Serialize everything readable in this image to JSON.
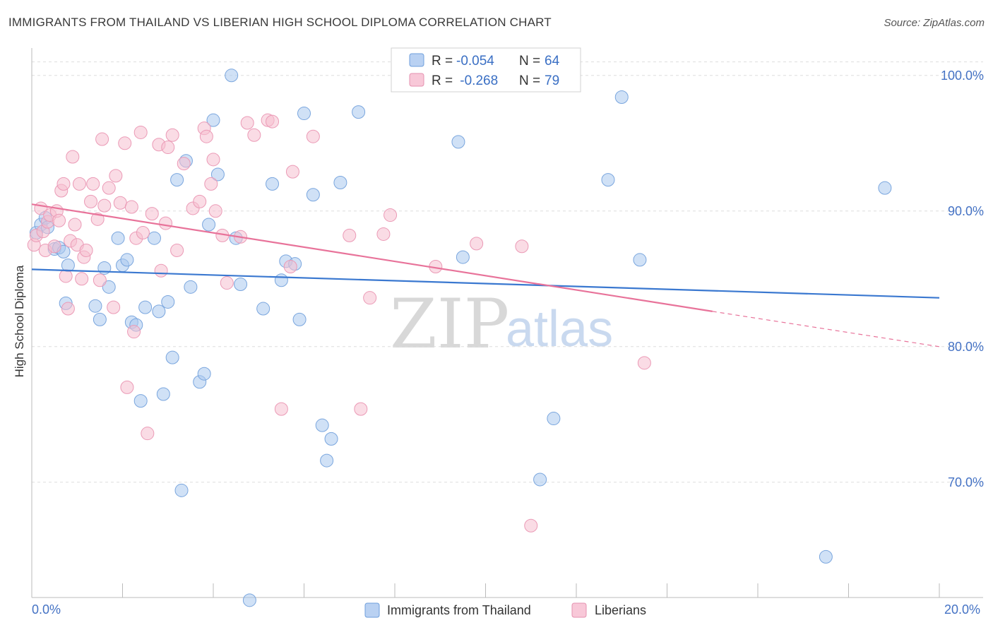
{
  "title": "IMMIGRANTS FROM THAILAND VS LIBERIAN HIGH SCHOOL DIPLOMA CORRELATION CHART",
  "source": "Source: ZipAtlas.com",
  "watermark": {
    "zip": "ZIP",
    "atlas": "atlas"
  },
  "colors": {
    "blue": "#3a78d0",
    "pink": "#e8739a",
    "blue_fill": "#aac8ee",
    "pink_fill": "#f5bfd0",
    "grid": "#dddddd"
  },
  "legend": {
    "rows": [
      {
        "r_label": "R = ",
        "r_value": "-0.054",
        "n_label": "N = ",
        "n_value": "64"
      },
      {
        "r_label": "R = ",
        "r_value": " -0.268",
        "n_label": "N = ",
        "n_value": "79"
      }
    ]
  },
  "chart_data": {
    "type": "scatter",
    "title": "IMMIGRANTS FROM THAILAND VS LIBERIAN HIGH SCHOOL DIPLOMA CORRELATION CHART",
    "xlabel": "",
    "ylabel": "High School Diploma",
    "xlim": [
      0,
      20
    ],
    "ylim": [
      61.5,
      101.5
    ],
    "x_tick_labels": [
      "0.0%",
      "20.0%"
    ],
    "y_ticks": [
      70,
      80,
      90,
      100
    ],
    "y_tick_labels": [
      "70.0%",
      "80.0%",
      "90.0%",
      "100.0%"
    ],
    "grid": true,
    "series": [
      {
        "name": "Immigrants from Thailand",
        "color": "#3a78d0",
        "R": -0.054,
        "N": 64,
        "trend": {
          "x": [
            0,
            20
          ],
          "y": [
            85.7,
            83.6
          ]
        },
        "points": [
          [
            0.1,
            88.4
          ],
          [
            0.2,
            89.0
          ],
          [
            0.3,
            89.5
          ],
          [
            0.35,
            88.8
          ],
          [
            0.5,
            87.2
          ],
          [
            0.6,
            87.3
          ],
          [
            0.7,
            87.0
          ],
          [
            0.8,
            86.0
          ],
          [
            0.75,
            83.2
          ],
          [
            1.4,
            83.0
          ],
          [
            1.5,
            82.0
          ],
          [
            1.6,
            85.8
          ],
          [
            1.7,
            84.4
          ],
          [
            1.9,
            88.0
          ],
          [
            2.0,
            86.0
          ],
          [
            2.1,
            86.4
          ],
          [
            2.2,
            81.8
          ],
          [
            2.3,
            81.6
          ],
          [
            2.4,
            76.0
          ],
          [
            2.5,
            82.9
          ],
          [
            2.7,
            88.0
          ],
          [
            2.8,
            82.6
          ],
          [
            2.9,
            76.5
          ],
          [
            3.0,
            83.3
          ],
          [
            3.1,
            79.2
          ],
          [
            3.2,
            92.3
          ],
          [
            3.3,
            69.4
          ],
          [
            3.4,
            93.7
          ],
          [
            3.5,
            84.4
          ],
          [
            3.7,
            77.4
          ],
          [
            3.8,
            78.0
          ],
          [
            3.9,
            89.0
          ],
          [
            4.0,
            96.7
          ],
          [
            4.1,
            92.7
          ],
          [
            4.4,
            100.0
          ],
          [
            4.5,
            88.0
          ],
          [
            4.6,
            84.6
          ],
          [
            4.8,
            61.3
          ],
          [
            5.1,
            82.8
          ],
          [
            5.3,
            92.0
          ],
          [
            5.5,
            84.9
          ],
          [
            5.6,
            86.3
          ],
          [
            5.8,
            86.1
          ],
          [
            5.9,
            82.0
          ],
          [
            6.0,
            97.2
          ],
          [
            6.2,
            91.2
          ],
          [
            6.4,
            74.2
          ],
          [
            6.5,
            71.6
          ],
          [
            6.6,
            73.2
          ],
          [
            6.8,
            92.1
          ],
          [
            7.2,
            97.3
          ],
          [
            9.4,
            95.1
          ],
          [
            9.5,
            86.6
          ],
          [
            11.2,
            70.2
          ],
          [
            11.5,
            74.7
          ],
          [
            12.7,
            92.3
          ],
          [
            13.0,
            98.4
          ],
          [
            13.4,
            86.4
          ],
          [
            17.5,
            64.5
          ],
          [
            18.8,
            91.7
          ]
        ]
      },
      {
        "name": "Liberians",
        "color": "#e8739a",
        "R": -0.268,
        "N": 79,
        "trend": {
          "x": [
            0,
            15
          ],
          "y": [
            90.5,
            82.6
          ]
        },
        "trend_dashed": {
          "x": [
            15,
            20
          ],
          "y": [
            82.6,
            80.0
          ]
        },
        "points": [
          [
            0.05,
            87.5
          ],
          [
            0.1,
            88.2
          ],
          [
            0.2,
            90.2
          ],
          [
            0.25,
            88.5
          ],
          [
            0.3,
            87.1
          ],
          [
            0.35,
            89.2
          ],
          [
            0.4,
            89.7
          ],
          [
            0.5,
            87.4
          ],
          [
            0.55,
            90.0
          ],
          [
            0.6,
            89.3
          ],
          [
            0.65,
            91.5
          ],
          [
            0.7,
            92.0
          ],
          [
            0.75,
            85.2
          ],
          [
            0.8,
            82.8
          ],
          [
            0.85,
            87.8
          ],
          [
            0.9,
            94.0
          ],
          [
            0.95,
            89.0
          ],
          [
            1.0,
            87.5
          ],
          [
            1.05,
            92.0
          ],
          [
            1.1,
            85.0
          ],
          [
            1.15,
            86.6
          ],
          [
            1.2,
            87.1
          ],
          [
            1.3,
            90.7
          ],
          [
            1.35,
            92.0
          ],
          [
            1.45,
            89.4
          ],
          [
            1.5,
            84.9
          ],
          [
            1.55,
            95.3
          ],
          [
            1.6,
            90.4
          ],
          [
            1.7,
            91.7
          ],
          [
            1.8,
            82.9
          ],
          [
            1.85,
            92.6
          ],
          [
            1.95,
            90.6
          ],
          [
            2.05,
            95.0
          ],
          [
            2.1,
            77.0
          ],
          [
            2.2,
            90.3
          ],
          [
            2.25,
            81.1
          ],
          [
            2.3,
            88.0
          ],
          [
            2.4,
            95.8
          ],
          [
            2.45,
            88.4
          ],
          [
            2.55,
            73.6
          ],
          [
            2.65,
            89.8
          ],
          [
            2.8,
            94.9
          ],
          [
            2.85,
            85.6
          ],
          [
            2.95,
            89.1
          ],
          [
            3.0,
            94.7
          ],
          [
            3.1,
            95.6
          ],
          [
            3.2,
            87.1
          ],
          [
            3.35,
            93.5
          ],
          [
            3.55,
            90.2
          ],
          [
            3.7,
            90.7
          ],
          [
            3.8,
            96.1
          ],
          [
            3.85,
            95.5
          ],
          [
            3.95,
            92.0
          ],
          [
            4.0,
            93.8
          ],
          [
            4.05,
            90.0
          ],
          [
            4.2,
            88.2
          ],
          [
            4.3,
            84.7
          ],
          [
            4.6,
            88.1
          ],
          [
            4.75,
            96.5
          ],
          [
            4.9,
            95.6
          ],
          [
            5.2,
            96.7
          ],
          [
            5.3,
            96.6
          ],
          [
            5.5,
            75.4
          ],
          [
            5.7,
            85.9
          ],
          [
            5.75,
            92.9
          ],
          [
            6.2,
            95.5
          ],
          [
            7.0,
            88.2
          ],
          [
            7.25,
            75.4
          ],
          [
            7.45,
            83.6
          ],
          [
            7.75,
            88.3
          ],
          [
            7.9,
            89.7
          ],
          [
            8.9,
            85.9
          ],
          [
            9.8,
            87.6
          ],
          [
            10.8,
            87.4
          ],
          [
            11.0,
            66.8
          ],
          [
            13.5,
            78.8
          ]
        ]
      }
    ]
  },
  "bottom_legend": {
    "items": [
      {
        "label": "Immigrants from Thailand"
      },
      {
        "label": "Liberians"
      }
    ]
  }
}
